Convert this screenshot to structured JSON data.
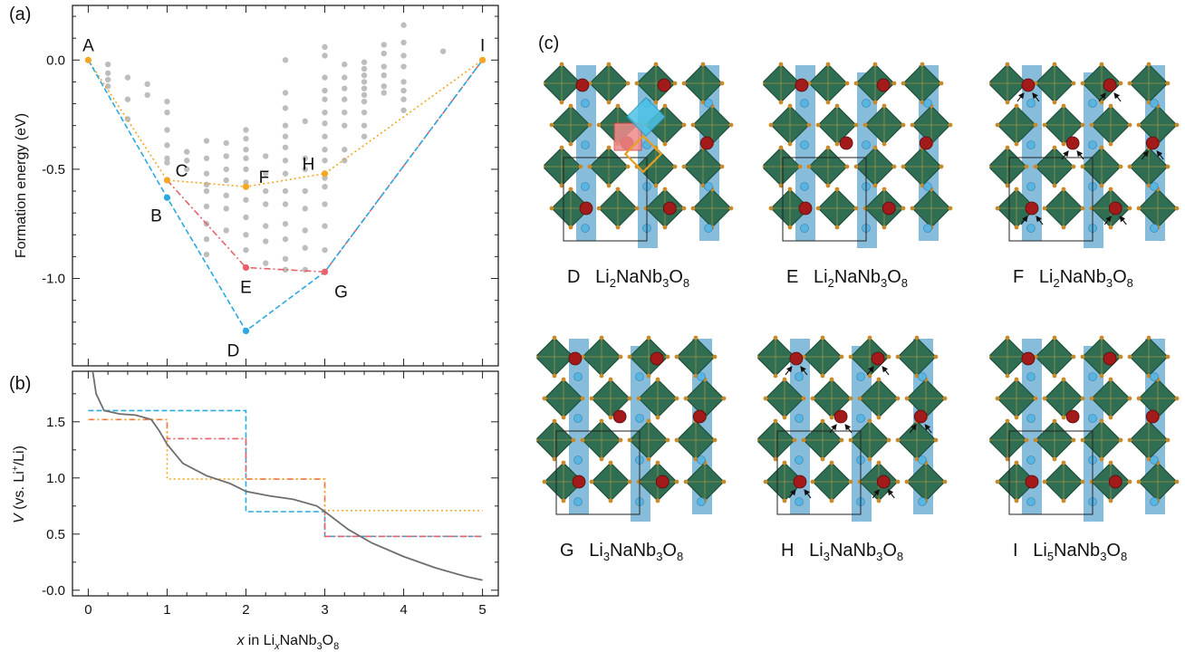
{
  "panels": {
    "a": "(a)",
    "b": "(b)",
    "c": "(c)"
  },
  "chart_data": [
    {
      "panel": "a",
      "type": "scatter",
      "ylabel": "Formation energy (eV)",
      "xlim": [
        -0.2,
        5.2
      ],
      "ylim": [
        -1.4,
        0.25
      ],
      "yticks": [
        0.0,
        -0.5,
        -1.0
      ],
      "ytick_labels": [
        "0.0",
        "-0.5",
        "-1.0"
      ],
      "grid": false,
      "scatter_points": [
        [
          0.25,
          -0.02
        ],
        [
          0.25,
          -0.06
        ],
        [
          0.25,
          -0.09
        ],
        [
          0.25,
          -0.12
        ],
        [
          0.5,
          -0.08
        ],
        [
          0.5,
          -0.18
        ],
        [
          0.5,
          -0.27
        ],
        [
          0.75,
          -0.11
        ],
        [
          0.75,
          -0.16
        ],
        [
          1.0,
          -0.19
        ],
        [
          1.0,
          -0.24
        ],
        [
          1.0,
          -0.32
        ],
        [
          1.0,
          -0.39
        ],
        [
          1.0,
          -0.45
        ],
        [
          1.0,
          -0.47
        ],
        [
          1.25,
          -0.42
        ],
        [
          1.25,
          -0.46
        ],
        [
          1.25,
          -0.5
        ],
        [
          1.5,
          -0.37
        ],
        [
          1.5,
          -0.45
        ],
        [
          1.5,
          -0.52
        ],
        [
          1.5,
          -0.57
        ],
        [
          1.5,
          -0.6
        ],
        [
          1.5,
          -0.67
        ],
        [
          1.5,
          -0.75
        ],
        [
          1.5,
          -0.82
        ],
        [
          1.5,
          -0.89
        ],
        [
          1.75,
          -0.38
        ],
        [
          1.75,
          -0.44
        ],
        [
          1.75,
          -0.5
        ],
        [
          1.75,
          -0.55
        ],
        [
          1.75,
          -0.62
        ],
        [
          1.75,
          -0.68
        ],
        [
          1.75,
          -0.78
        ],
        [
          2.0,
          -0.32
        ],
        [
          2.0,
          -0.36
        ],
        [
          2.0,
          -0.41
        ],
        [
          2.0,
          -0.45
        ],
        [
          2.0,
          -0.5
        ],
        [
          2.0,
          -0.56
        ],
        [
          2.0,
          -0.64
        ],
        [
          2.0,
          -0.72
        ],
        [
          2.0,
          -0.8
        ],
        [
          2.0,
          -0.87
        ],
        [
          2.25,
          -0.44
        ],
        [
          2.25,
          -0.52
        ],
        [
          2.25,
          -0.6
        ],
        [
          2.25,
          -0.66
        ],
        [
          2.25,
          -0.76
        ],
        [
          2.25,
          -0.83
        ],
        [
          2.25,
          -0.93
        ],
        [
          2.5,
          0.0
        ],
        [
          2.5,
          -0.15
        ],
        [
          2.5,
          -0.22
        ],
        [
          2.5,
          -0.3
        ],
        [
          2.5,
          -0.35
        ],
        [
          2.5,
          -0.4
        ],
        [
          2.5,
          -0.46
        ],
        [
          2.5,
          -0.52
        ],
        [
          2.5,
          -0.6
        ],
        [
          2.5,
          -0.66
        ],
        [
          2.5,
          -0.75
        ],
        [
          2.5,
          -0.82
        ],
        [
          2.5,
          -0.91
        ],
        [
          2.5,
          -0.96
        ],
        [
          2.75,
          -0.28
        ],
        [
          2.75,
          -0.45
        ],
        [
          2.75,
          -0.5
        ],
        [
          2.75,
          -0.6
        ],
        [
          2.75,
          -0.68
        ],
        [
          2.75,
          -0.78
        ],
        [
          2.75,
          -0.86
        ],
        [
          2.75,
          -0.96
        ],
        [
          3.0,
          0.06
        ],
        [
          3.0,
          0.02
        ],
        [
          3.0,
          -0.08
        ],
        [
          3.0,
          -0.14
        ],
        [
          3.0,
          -0.18
        ],
        [
          3.0,
          -0.24
        ],
        [
          3.0,
          -0.29
        ],
        [
          3.0,
          -0.35
        ],
        [
          3.0,
          -0.41
        ],
        [
          3.0,
          -0.46
        ],
        [
          3.0,
          -0.54
        ],
        [
          3.0,
          -0.58
        ],
        [
          3.0,
          -0.66
        ],
        [
          3.0,
          -0.76
        ],
        [
          3.0,
          -0.87
        ],
        [
          3.25,
          -0.02
        ],
        [
          3.25,
          -0.08
        ],
        [
          3.25,
          -0.13
        ],
        [
          3.25,
          -0.18
        ],
        [
          3.25,
          -0.24
        ],
        [
          3.25,
          -0.3
        ],
        [
          3.25,
          -0.41
        ],
        [
          3.25,
          -0.46
        ],
        [
          3.5,
          -0.01
        ],
        [
          3.5,
          -0.04
        ],
        [
          3.5,
          -0.07
        ],
        [
          3.5,
          -0.1
        ],
        [
          3.5,
          -0.13
        ],
        [
          3.5,
          -0.16
        ],
        [
          3.5,
          -0.19
        ],
        [
          3.5,
          -0.24
        ],
        [
          3.5,
          -0.3
        ],
        [
          3.5,
          -0.35
        ],
        [
          3.75,
          0.07
        ],
        [
          3.75,
          0.03
        ],
        [
          3.75,
          -0.03
        ],
        [
          3.75,
          -0.07
        ],
        [
          3.75,
          -0.12
        ],
        [
          3.75,
          -0.15
        ],
        [
          4.0,
          0.16
        ],
        [
          4.0,
          0.08
        ],
        [
          4.0,
          0.02
        ],
        [
          4.0,
          -0.03
        ],
        [
          4.0,
          -0.1
        ],
        [
          4.0,
          -0.14
        ],
        [
          4.0,
          -0.18
        ],
        [
          4.0,
          -0.23
        ],
        [
          4.5,
          0.04
        ]
      ],
      "series": [
        {
          "color": "#f5a623",
          "style": "dotted",
          "x": [
            0,
            1,
            2,
            3,
            5
          ],
          "y": [
            0.0,
            -0.55,
            -0.58,
            -0.52,
            0.0
          ]
        },
        {
          "color": "#e8616a",
          "style": "dashdot",
          "x": [
            1,
            2,
            3,
            5
          ],
          "y": [
            -0.55,
            -0.95,
            -0.97,
            0.0
          ]
        },
        {
          "color": "#29a9e0",
          "style": "dashed",
          "x": [
            0,
            1,
            2,
            3,
            5
          ],
          "y": [
            0.0,
            -0.63,
            -1.24,
            -0.97,
            0.0
          ]
        }
      ],
      "point_labels": [
        {
          "text": "A",
          "x": 0,
          "y": 0.0,
          "color": "#f5a623"
        },
        {
          "text": "B",
          "x": 1,
          "y": -0.63,
          "color": "#29a9e0"
        },
        {
          "text": "C",
          "x": 1,
          "y": -0.55,
          "color": "#f5a623"
        },
        {
          "text": "D",
          "x": 2,
          "y": -1.24,
          "color": "#29a9e0"
        },
        {
          "text": "E",
          "x": 2,
          "y": -0.95,
          "color": "#e8616a"
        },
        {
          "text": "F",
          "x": 2,
          "y": -0.58,
          "color": "#f5a623"
        },
        {
          "text": "G",
          "x": 3,
          "y": -0.97,
          "color": "#e8616a"
        },
        {
          "text": "H",
          "x": 3,
          "y": -0.52,
          "color": "#f5a623"
        },
        {
          "text": "I",
          "x": 5,
          "y": 0.0,
          "color": "#f5a623"
        }
      ]
    },
    {
      "panel": "b",
      "type": "line",
      "ylabel_italic": "V",
      "ylabel_rest": " (vs. Li",
      "ylabel_sup": "+",
      "ylabel_tail": "/Li)",
      "xlabel_italic": "x",
      "xlabel_text": "in Li",
      "xlabel_sub_italic": "x",
      "xlabel_mid": "NaNb",
      "xlabel_sub3": "3",
      "xlabel_o": "O",
      "xlabel_sub8": "8",
      "xlim": [
        -0.2,
        5.2
      ],
      "ylim": [
        -0.05,
        1.95
      ],
      "xticks": [
        0,
        1,
        2,
        3,
        4,
        5
      ],
      "xtick_labels": [
        "0",
        "1",
        "2",
        "3",
        "4",
        "5"
      ],
      "yticks": [
        1.5,
        1.0,
        0.5,
        0.0
      ],
      "ytick_labels": [
        "1.5",
        "1.0",
        "0.5",
        "-0.0"
      ],
      "series": [
        {
          "color": "#29a9e0",
          "style": "dashed",
          "x": [
            0,
            2,
            2,
            3,
            3,
            5
          ],
          "y": [
            1.6,
            1.6,
            0.7,
            0.7,
            0.48,
            0.48
          ]
        },
        {
          "color": "#e8616a",
          "style": "dashdot",
          "x": [
            0,
            1,
            1,
            2,
            2,
            3,
            3,
            5
          ],
          "y": [
            1.52,
            1.52,
            1.35,
            1.35,
            0.99,
            0.99,
            0.48,
            0.48
          ]
        },
        {
          "color": "#f5a623",
          "style": "dotted",
          "x": [
            0,
            1,
            1,
            3,
            3,
            5
          ],
          "y": [
            1.52,
            1.52,
            0.99,
            0.99,
            0.71,
            0.71
          ]
        },
        {
          "color": "#6e6e6e",
          "style": "solid",
          "x": [
            0.05,
            0.1,
            0.2,
            0.4,
            0.6,
            0.8,
            0.9,
            1.0,
            1.2,
            1.5,
            1.8,
            2.0,
            2.3,
            2.6,
            2.9,
            3.0,
            3.3,
            3.6,
            4.0,
            4.4,
            4.8,
            5.0
          ],
          "y": [
            1.98,
            1.75,
            1.6,
            1.57,
            1.56,
            1.52,
            1.42,
            1.3,
            1.13,
            1.02,
            0.95,
            0.88,
            0.84,
            0.81,
            0.75,
            0.7,
            0.54,
            0.42,
            0.3,
            0.2,
            0.12,
            0.09
          ]
        }
      ]
    }
  ],
  "structures": [
    {
      "id": "D",
      "formula_pre": "Li",
      "formula_sub1": "2",
      "formula_mid": "NaNb",
      "formula_sub2": "3",
      "formula_o": "O",
      "formula_sub3": "8",
      "arrows": false
    },
    {
      "id": "E",
      "formula_pre": "Li",
      "formula_sub1": "2",
      "formula_mid": "NaNb",
      "formula_sub2": "3",
      "formula_o": "O",
      "formula_sub3": "8",
      "arrows": false
    },
    {
      "id": "F",
      "formula_pre": "Li",
      "formula_sub1": "2",
      "formula_mid": "NaNb",
      "formula_sub2": "3",
      "formula_o": "O",
      "formula_sub3": "8",
      "arrows": true
    },
    {
      "id": "G",
      "formula_pre": "Li",
      "formula_sub1": "3",
      "formula_mid": "NaNb",
      "formula_sub2": "3",
      "formula_o": "O",
      "formula_sub3": "8",
      "arrows": false
    },
    {
      "id": "H",
      "formula_pre": "Li",
      "formula_sub1": "3",
      "formula_mid": "NaNb",
      "formula_sub2": "3",
      "formula_o": "O",
      "formula_sub3": "8",
      "arrows": true
    },
    {
      "id": "I",
      "formula_pre": "Li",
      "formula_sub1": "5",
      "formula_mid": "NaNb",
      "formula_sub2": "3",
      "formula_o": "O",
      "formula_sub3": "8",
      "arrows": false
    }
  ],
  "colors": {
    "octahedron": "#2f6e52",
    "octahedron_edge": "#1d4a36",
    "polyhedron_blue": "#5fa7cf",
    "red_atom": "#a31a1a",
    "blue_atom": "#5ab4e0",
    "oxygen": "#c88a2a",
    "scatter_grey": "#bdbdbd"
  }
}
